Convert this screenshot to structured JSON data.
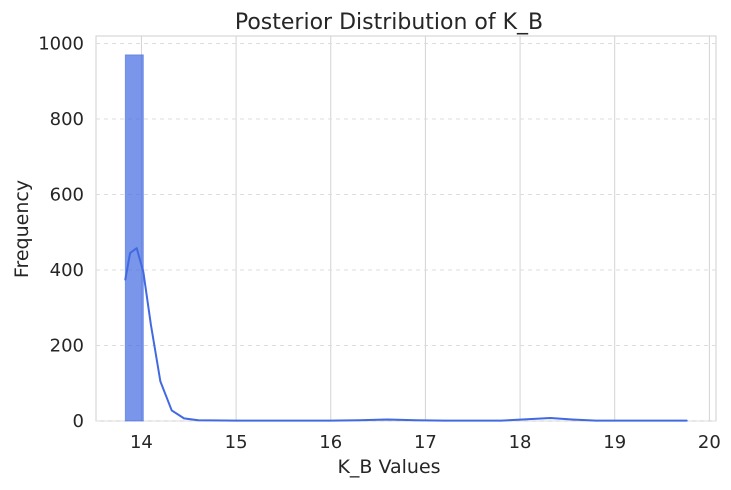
{
  "chart_data": {
    "type": "bar",
    "title": "Posterior Distribution of K_B",
    "xlabel": "K_B Values",
    "ylabel": "Frequency",
    "xlim": [
      13.52,
      20.07
    ],
    "ylim": [
      0,
      1020
    ],
    "x_ticks": [
      14,
      15,
      16,
      17,
      18,
      19,
      20
    ],
    "y_ticks": [
      0,
      200,
      400,
      600,
      800,
      1000
    ],
    "grid": true,
    "legend": "none",
    "histogram": {
      "bins": [
        {
          "x_start": 13.83,
          "x_end": 14.02,
          "value": 970
        }
      ]
    },
    "kde": {
      "points": [
        [
          13.83,
          375
        ],
        [
          13.88,
          445
        ],
        [
          13.95,
          458
        ],
        [
          14.02,
          395
        ],
        [
          14.1,
          255
        ],
        [
          14.2,
          105
        ],
        [
          14.32,
          28
        ],
        [
          14.45,
          7
        ],
        [
          14.6,
          2
        ],
        [
          15.0,
          1
        ],
        [
          16.0,
          1
        ],
        [
          16.3,
          2
        ],
        [
          16.6,
          4
        ],
        [
          16.9,
          2
        ],
        [
          17.2,
          1
        ],
        [
          17.8,
          1
        ],
        [
          18.1,
          5
        ],
        [
          18.32,
          8
        ],
        [
          18.55,
          4
        ],
        [
          18.8,
          1
        ],
        [
          19.3,
          1
        ],
        [
          19.76,
          1
        ]
      ]
    },
    "colors": {
      "bar_fill": "#4169e1",
      "bar_fill_opacity": 0.7,
      "kde_line": "#4169e1",
      "grid_major_x": "#d3d3d3",
      "grid_major_y": "#dddddd",
      "axes_edge": "#cfcfcf",
      "text": "#262626",
      "background": "#ffffff"
    }
  }
}
